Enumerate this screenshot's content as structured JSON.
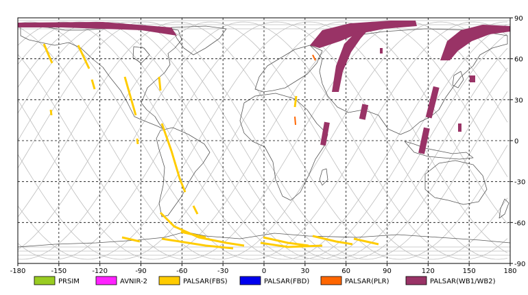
{
  "map": {
    "x_ticks": [
      "-180",
      "-150",
      "-120",
      "-90",
      "-60",
      "-30",
      "0",
      "30",
      "60",
      "90",
      "120",
      "150",
      "180"
    ],
    "y_ticks": [
      "90",
      "60",
      "30",
      "0",
      "-30",
      "-60",
      "-90"
    ],
    "frame_color": "#000000",
    "grid_color": "#000000",
    "land_color": "#555555",
    "orbit_color": "#bbbbbb"
  },
  "legend": [
    {
      "label": "PRSIM",
      "color": "#99cc22"
    },
    {
      "label": "AVNIR-2",
      "color": "#ff22ff"
    },
    {
      "label": "PALSAR(FBS)",
      "color": "#ffcc00"
    },
    {
      "label": "PALSAR(FBD)",
      "color": "#0000ee"
    },
    {
      "label": "PALSAR(PLR)",
      "color": "#ff6600"
    },
    {
      "label": "PALSAR(WB1/WB2)",
      "color": "#993366"
    }
  ]
}
